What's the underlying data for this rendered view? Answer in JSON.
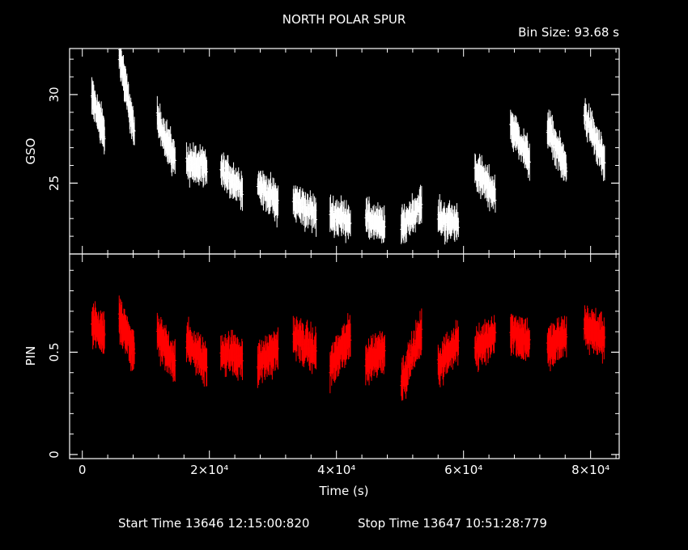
{
  "title": "NORTH POLAR SPUR",
  "bin_size": "Bin Size: 93.68 s",
  "start_time": "Start Time 13646 12:15:00:820",
  "stop_time": "Stop Time 13647 10:51:28:779",
  "colors": {
    "background": "#000000",
    "axes": "#ffffff",
    "gso": "#ffffff",
    "pin": "#ff0000"
  },
  "chart_data": [
    {
      "type": "scatter",
      "name": "gso-panel",
      "ylabel": "GSO",
      "xlim": [
        -2000,
        84500
      ],
      "ylim": [
        21.0,
        32.6
      ],
      "yticks": [
        25,
        30
      ],
      "ytick_labels": [
        "25",
        "30"
      ],
      "grid": false,
      "error_bars": true,
      "series": [
        {
          "color": "#ffffff",
          "segments": [
            {
              "x0": 1500,
              "x1": 3500,
              "y0": 29.9,
              "y1": 27.7
            },
            {
              "x0": 5800,
              "x1": 8200,
              "y0": 32.4,
              "y1": 27.8
            },
            {
              "x0": 11800,
              "x1": 14600,
              "y0": 28.6,
              "y1": 26.3
            },
            {
              "x0": 16400,
              "x1": 19600,
              "y0": 26.2,
              "y1": 25.8
            },
            {
              "x0": 21800,
              "x1": 25200,
              "y0": 25.7,
              "y1": 24.7
            },
            {
              "x0": 27600,
              "x1": 30800,
              "y0": 24.9,
              "y1": 23.9
            },
            {
              "x0": 33200,
              "x1": 36800,
              "y0": 24.0,
              "y1": 23.2
            },
            {
              "x0": 39000,
              "x1": 42200,
              "y0": 23.2,
              "y1": 22.9
            },
            {
              "x0": 44600,
              "x1": 47600,
              "y0": 23.0,
              "y1": 22.5
            },
            {
              "x0": 50200,
              "x1": 53400,
              "y0": 22.5,
              "y1": 23.8
            },
            {
              "x0": 56000,
              "x1": 59200,
              "y0": 23.0,
              "y1": 22.7
            },
            {
              "x0": 61800,
              "x1": 65000,
              "y0": 25.8,
              "y1": 24.3
            },
            {
              "x0": 67400,
              "x1": 70400,
              "y0": 28.3,
              "y1": 26.3
            },
            {
              "x0": 73200,
              "x1": 76200,
              "y0": 28.2,
              "y1": 25.8
            },
            {
              "x0": 79000,
              "x1": 82200,
              "y0": 28.9,
              "y1": 26.2
            }
          ]
        }
      ]
    },
    {
      "type": "scatter",
      "name": "pin-panel",
      "ylabel": "PIN",
      "xlabel": "Time (s)",
      "xlim": [
        -2000,
        84500
      ],
      "ylim": [
        -0.02,
        0.98
      ],
      "yticks": [
        0,
        0.5
      ],
      "ytick_labels": [
        "0",
        "0.5"
      ],
      "xticks": [
        0,
        20000,
        40000,
        60000,
        80000
      ],
      "xtick_labels": [
        "0",
        "2×10⁴",
        "4×10⁴",
        "6×10⁴",
        "8×10⁴"
      ],
      "grid": false,
      "error_bars": true,
      "series": [
        {
          "color": "#ff0000",
          "segments": [
            {
              "x0": 1500,
              "x1": 3500,
              "y0": 0.63,
              "y1": 0.58
            },
            {
              "x0": 5800,
              "x1": 8200,
              "y0": 0.66,
              "y1": 0.5
            },
            {
              "x0": 11800,
              "x1": 14600,
              "y0": 0.58,
              "y1": 0.45
            },
            {
              "x0": 16400,
              "x1": 19600,
              "y0": 0.55,
              "y1": 0.44
            },
            {
              "x0": 21800,
              "x1": 25200,
              "y0": 0.5,
              "y1": 0.48
            },
            {
              "x0": 27600,
              "x1": 30800,
              "y0": 0.44,
              "y1": 0.52
            },
            {
              "x0": 33200,
              "x1": 36800,
              "y0": 0.58,
              "y1": 0.5
            },
            {
              "x0": 39000,
              "x1": 42200,
              "y0": 0.43,
              "y1": 0.58
            },
            {
              "x0": 44600,
              "x1": 47600,
              "y0": 0.45,
              "y1": 0.52
            },
            {
              "x0": 50200,
              "x1": 53400,
              "y0": 0.35,
              "y1": 0.6
            },
            {
              "x0": 56000,
              "x1": 59200,
              "y0": 0.43,
              "y1": 0.56
            },
            {
              "x0": 61800,
              "x1": 65000,
              "y0": 0.5,
              "y1": 0.6
            },
            {
              "x0": 67400,
              "x1": 70400,
              "y0": 0.6,
              "y1": 0.55
            },
            {
              "x0": 73200,
              "x1": 76200,
              "y0": 0.52,
              "y1": 0.58
            },
            {
              "x0": 79000,
              "x1": 82200,
              "y0": 0.63,
              "y1": 0.57
            }
          ]
        }
      ]
    }
  ]
}
